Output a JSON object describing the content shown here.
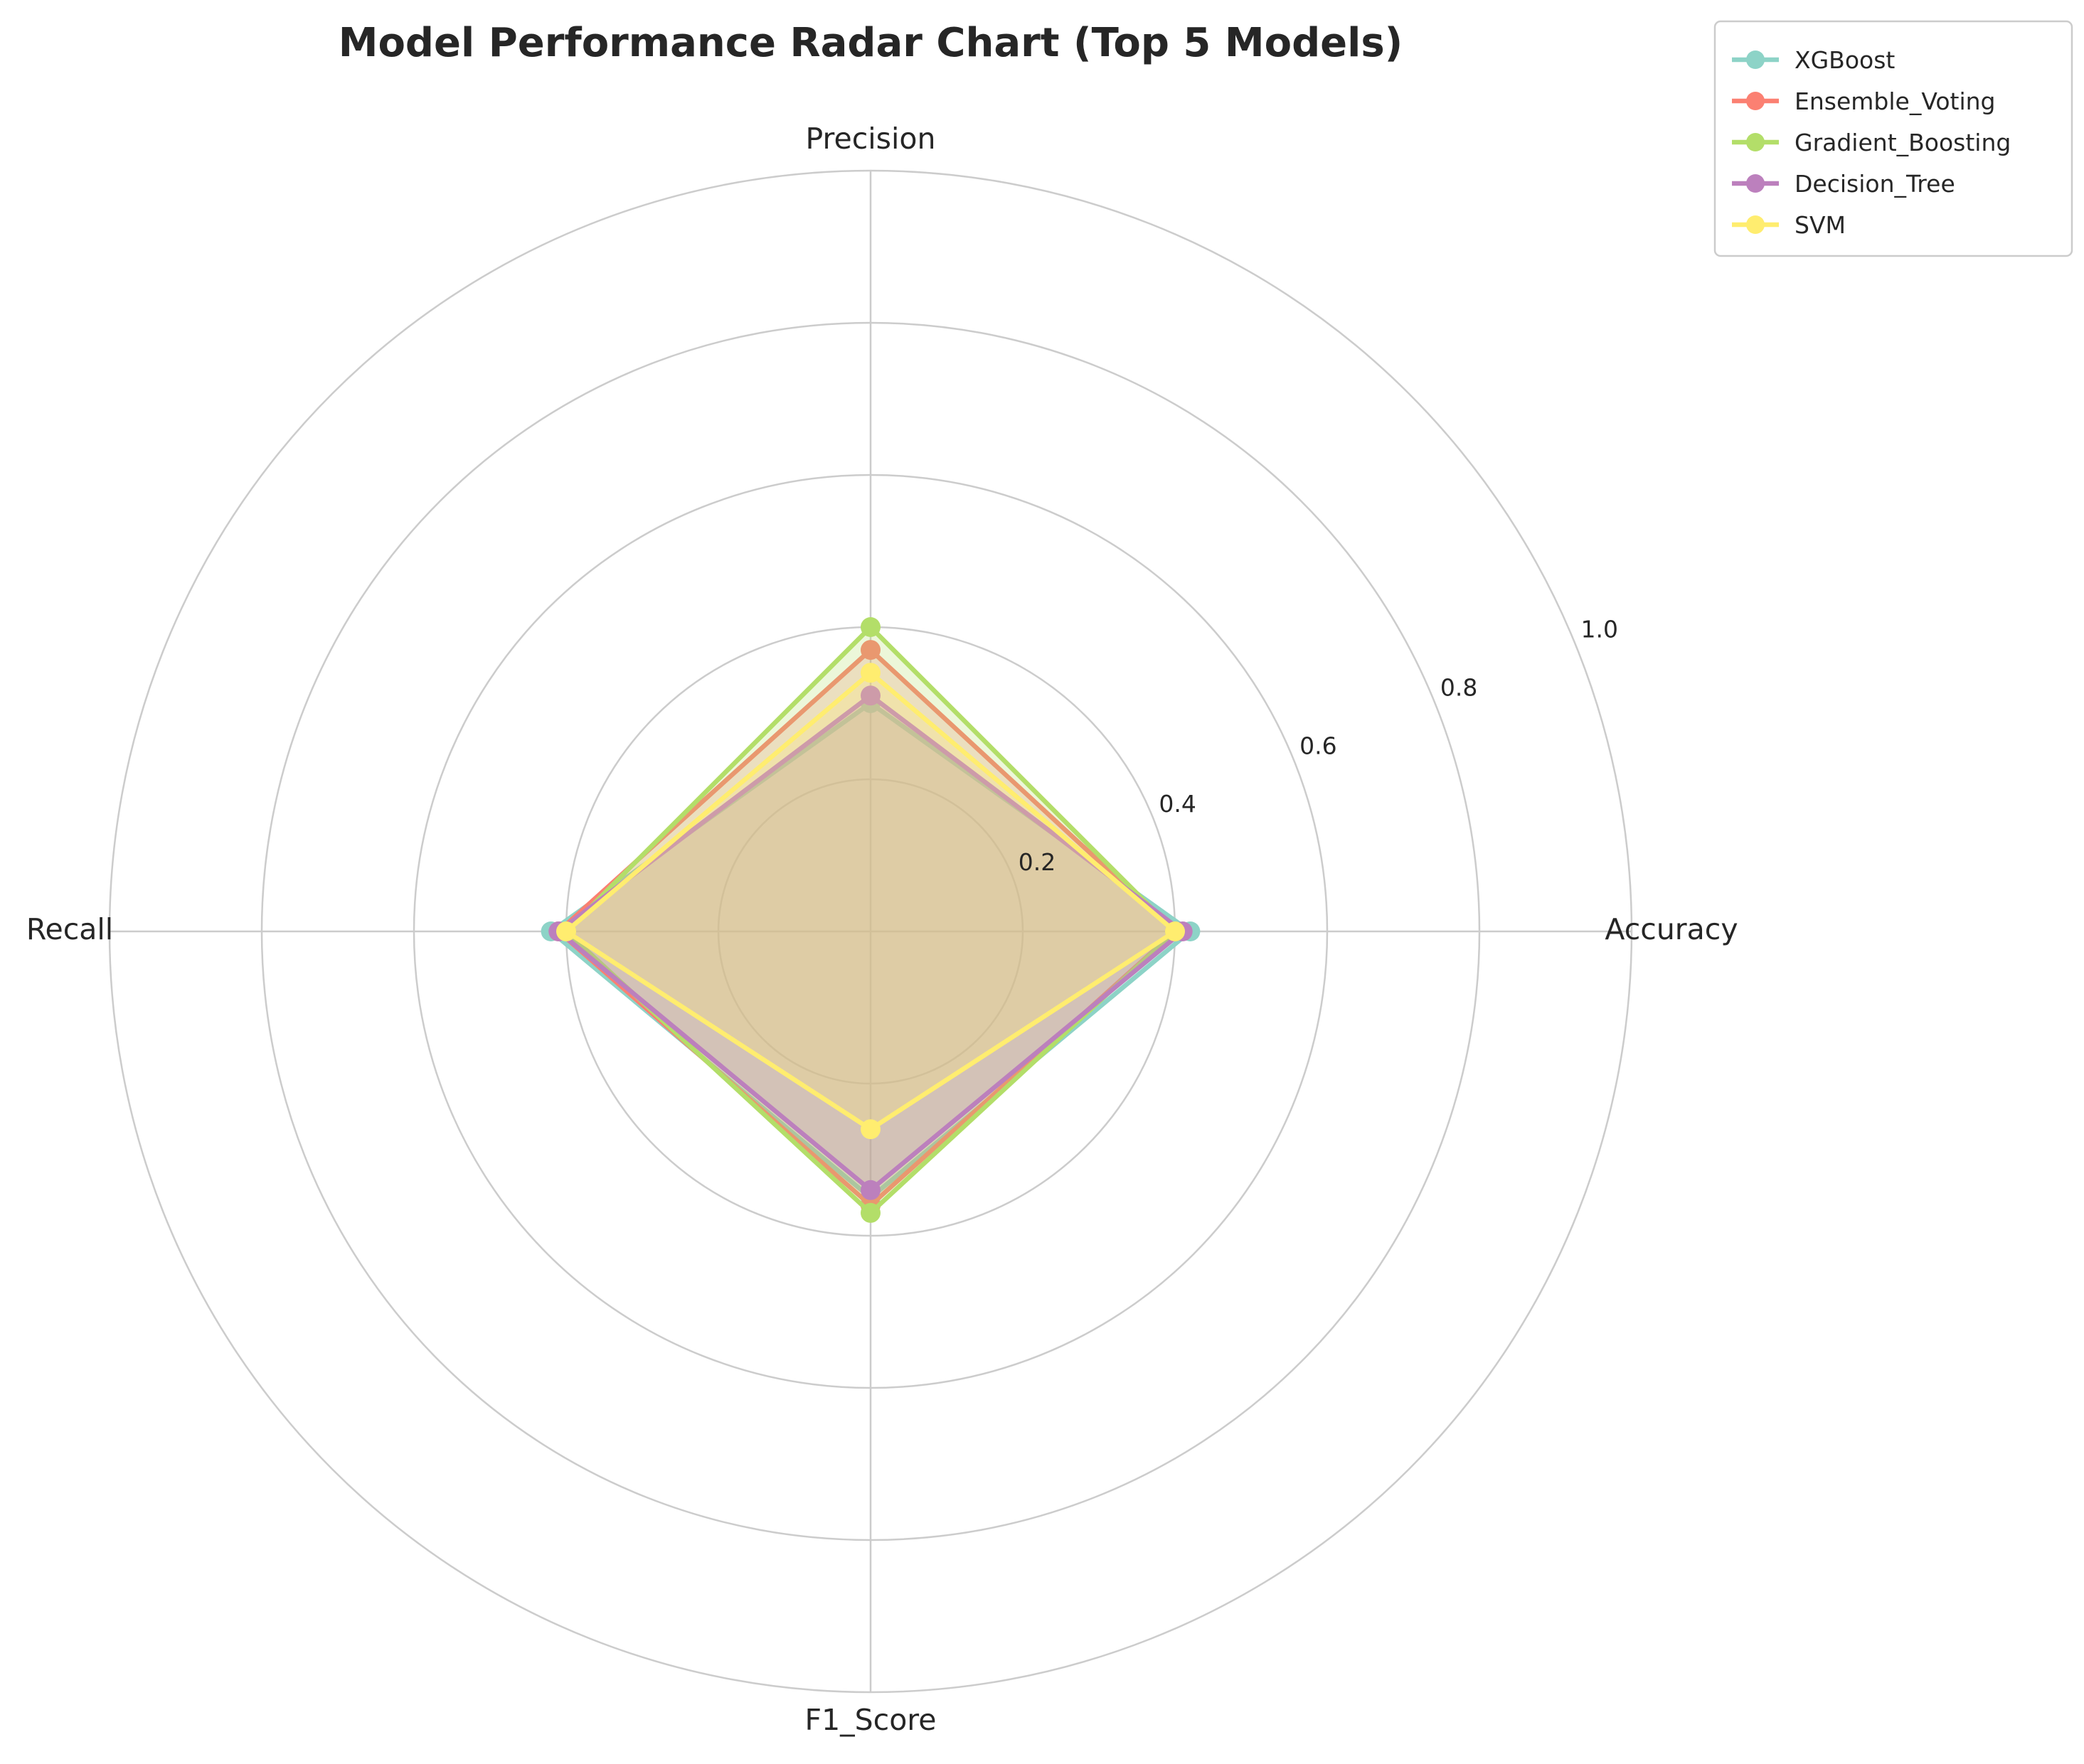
{
  "chart_data": {
    "type": "radar",
    "title": "Model Performance Radar Chart (Top 5 Models)",
    "axes": [
      "Accuracy",
      "Precision",
      "Recall",
      "F1_Score"
    ],
    "rlim": [
      0,
      1.0
    ],
    "rticks": [
      "0.2",
      "0.4",
      "0.6",
      "0.8",
      "1.0"
    ],
    "rtick_values": [
      0.2,
      0.4,
      0.6,
      0.8,
      1.0
    ],
    "grid": true,
    "legend_position": "top-right",
    "series": [
      {
        "name": "XGBoost",
        "color": "#8dd3c7",
        "values": [
          0.42,
          0.3,
          0.42,
          0.35
        ]
      },
      {
        "name": "Ensemble_Voting",
        "color": "#fb8072",
        "values": [
          0.4,
          0.37,
          0.41,
          0.36
        ]
      },
      {
        "name": "Gradient_Boosting",
        "color": "#b3de69",
        "values": [
          0.4,
          0.4,
          0.4,
          0.37
        ]
      },
      {
        "name": "Decision_Tree",
        "color": "#bc80bd",
        "values": [
          0.41,
          0.31,
          0.41,
          0.34
        ]
      },
      {
        "name": "SVM",
        "color": "#ffed6f",
        "values": [
          0.4,
          0.34,
          0.4,
          0.26
        ]
      }
    ]
  }
}
